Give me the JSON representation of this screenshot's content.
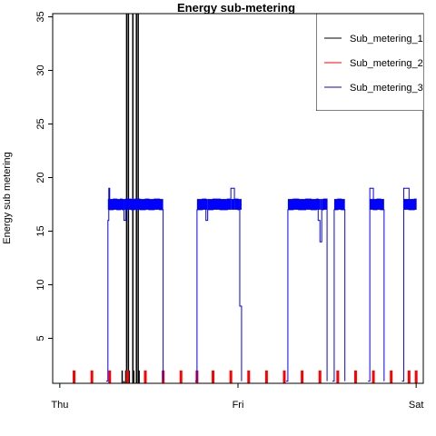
{
  "chart_data": {
    "type": "line",
    "title": "Energy sub-metering",
    "xlabel": "",
    "ylabel": "Energy sub metering",
    "xlim": [
      -0.04,
      2.04
    ],
    "ylim": [
      0.8,
      35.3
    ],
    "x_ticks": [
      {
        "value": 0,
        "label": "Thu"
      },
      {
        "value": 1,
        "label": "Fri"
      },
      {
        "value": 2,
        "label": "Sat"
      }
    ],
    "y_ticks": [
      5,
      10,
      15,
      20,
      25,
      30,
      35
    ],
    "legend": {
      "position": "top-right"
    },
    "series": [
      {
        "name": "Sub_metering_1",
        "color": "#000000",
        "spikes": [
          {
            "x": 0.35,
            "y": 2
          },
          {
            "x": 0.36,
            "y": 1
          },
          {
            "x": 0.37,
            "y": 2
          },
          {
            "x": 0.375,
            "y": 38
          },
          {
            "x": 0.385,
            "y": 38
          },
          {
            "x": 0.39,
            "y": 2
          },
          {
            "x": 0.41,
            "y": 38
          },
          {
            "x": 0.415,
            "y": 2
          },
          {
            "x": 0.43,
            "y": 38
          },
          {
            "x": 0.44,
            "y": 38
          },
          {
            "x": 0.445,
            "y": 2
          }
        ]
      },
      {
        "name": "Sub_metering_2",
        "color": "#ff0000",
        "spikes": [
          {
            "x": 0.08,
            "y": 2
          },
          {
            "x": 0.18,
            "y": 2
          },
          {
            "x": 0.28,
            "y": 2
          },
          {
            "x": 0.38,
            "y": 2
          },
          {
            "x": 0.48,
            "y": 2
          },
          {
            "x": 0.58,
            "y": 2
          },
          {
            "x": 0.68,
            "y": 2
          },
          {
            "x": 0.77,
            "y": 2
          },
          {
            "x": 0.86,
            "y": 2
          },
          {
            "x": 0.96,
            "y": 2
          },
          {
            "x": 1.06,
            "y": 2
          },
          {
            "x": 1.16,
            "y": 2
          },
          {
            "x": 1.26,
            "y": 2
          },
          {
            "x": 1.36,
            "y": 2
          },
          {
            "x": 1.46,
            "y": 2
          },
          {
            "x": 1.56,
            "y": 2
          },
          {
            "x": 1.66,
            "y": 2
          },
          {
            "x": 1.76,
            "y": 2
          },
          {
            "x": 1.86,
            "y": 2
          },
          {
            "x": 1.96,
            "y": 2
          },
          {
            "x": 2.0,
            "y": 2
          }
        ]
      },
      {
        "name": "Sub_metering_3",
        "color": "#0000ff",
        "segments": [
          {
            "x": [
              0.26,
              0.27,
              0.275,
              0.28,
              0.3,
              0.32,
              0.34,
              0.35,
              0.36,
              0.37,
              0.4,
              0.42,
              0.45,
              0.48,
              0.5,
              0.53,
              0.56,
              0.58
            ],
            "y": [
              1,
              16,
              19,
              17,
              18,
              17,
              18,
              17,
              16,
              18,
              17,
              18,
              17,
              18,
              17,
              18,
              17,
              1
            ]
          },
          {
            "x": [
              0.76,
              0.77,
              0.8,
              0.82,
              0.83,
              0.86,
              0.9,
              0.94,
              0.96,
              0.98,
              1.0,
              1.01,
              1.02
            ],
            "y": [
              1,
              17,
              18,
              16,
              17,
              18,
              17,
              18,
              19,
              18,
              17,
              8,
              1
            ]
          },
          {
            "x": [
              1.27,
              1.28,
              1.31,
              1.34,
              1.38,
              1.41,
              1.44,
              1.45,
              1.46,
              1.47,
              1.48,
              1.5
            ],
            "y": [
              1,
              17,
              18,
              17,
              18,
              17,
              18,
              16,
              14,
              17,
              18,
              1
            ]
          },
          {
            "x": [
              1.53,
              1.54,
              1.56,
              1.58,
              1.6
            ],
            "y": [
              1,
              17,
              18,
              17,
              1
            ]
          },
          {
            "x": [
              1.73,
              1.74,
              1.76,
              1.78,
              1.8,
              1.82
            ],
            "y": [
              1,
              19,
              17,
              18,
              17,
              1
            ]
          },
          {
            "x": [
              1.92,
              1.93,
              1.96,
              1.99,
              2.0
            ],
            "y": [
              1,
              19,
              17,
              18,
              17
            ]
          }
        ]
      }
    ]
  }
}
